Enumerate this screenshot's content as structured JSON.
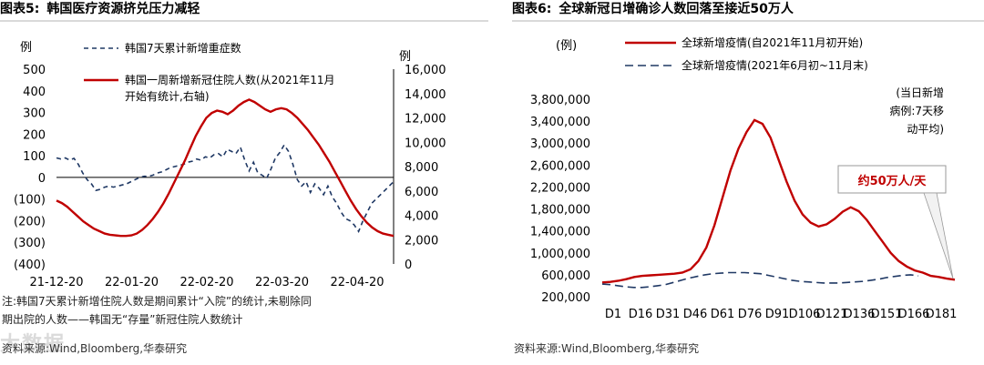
{
  "left": {
    "fig_label": "图表5:",
    "fig_title": "韩国医疗资源挤兑压力减轻",
    "note_line1": "注:韩国7天累计新增住院人数是期间累计“入院”的统计,未剔除同",
    "note_line2": "期出院的人数——韩国无“存量”新冠住院人数统计",
    "source": "资料来源:Wind,Bloomberg,华泰研究",
    "watermark": "大数据"
  },
  "right": {
    "fig_label": "图表6:",
    "fig_title": "全球新冠日增确诊人数回落至接近50万人",
    "source": "资料来源:Wind,Bloomberg,华泰研究",
    "annot_lines": [
      "(当日新增",
      "病例:7天移",
      "动平均)"
    ],
    "callout": "约50万人/天"
  },
  "chart_data": [
    {
      "type": "line",
      "x_tick_labels": [
        "21-12-20",
        "22-01-20",
        "22-02-20",
        "22-03-20",
        "22-04-20"
      ],
      "y_left_label": "例",
      "y_right_label": "例",
      "y_left_ticks": [
        "500",
        "400",
        "300",
        "200",
        "100",
        "0",
        "(100)",
        "(200)",
        "(300)",
        "(400)"
      ],
      "y_left_lim": [
        -400,
        500
      ],
      "y_right_ticks": [
        "16,000",
        "14,000",
        "12,000",
        "10,000",
        "8,000",
        "6,000",
        "4,000",
        "2,000",
        "0"
      ],
      "y_right_lim": [
        0,
        16000
      ],
      "legend_position": "top-left",
      "series": [
        {
          "name": "韩国7天累计新增重症数",
          "axis": "left",
          "style": "dashed",
          "color": "#1f3864",
          "values": [
            90,
            85,
            90,
            80,
            88,
            60,
            20,
            -10,
            -30,
            -60,
            -55,
            -45,
            -40,
            -45,
            -40,
            -35,
            -30,
            -20,
            -10,
            0,
            5,
            5,
            10,
            20,
            25,
            35,
            45,
            50,
            55,
            60,
            70,
            75,
            85,
            80,
            95,
            90,
            105,
            110,
            95,
            130,
            120,
            110,
            140,
            80,
            30,
            70,
            20,
            10,
            -5,
            40,
            90,
            115,
            150,
            120,
            60,
            -10,
            -40,
            -20,
            -70,
            -30,
            -50,
            -80,
            -40,
            -90,
            -120,
            -160,
            -190,
            -200,
            -220,
            -250,
            -200,
            -160,
            -120,
            -100,
            -80,
            -60,
            -40,
            -20
          ]
        },
        {
          "name": "韩国一周新增新冠住院人数(从2021年11月开始有统计,右轴)",
          "axis": "right",
          "style": "solid",
          "color": "#c00000",
          "values": [
            5200,
            5000,
            4700,
            4300,
            3900,
            3500,
            3200,
            2900,
            2700,
            2500,
            2400,
            2350,
            2300,
            2300,
            2350,
            2500,
            2800,
            3200,
            3700,
            4300,
            5000,
            5800,
            6700,
            7600,
            8500,
            9500,
            10500,
            11300,
            12000,
            12400,
            12600,
            12500,
            12300,
            12600,
            13000,
            13300,
            13500,
            13300,
            13000,
            12700,
            12500,
            12700,
            12800,
            12700,
            12400,
            12000,
            11500,
            11000,
            10400,
            9800,
            9100,
            8400,
            7600,
            6800,
            6000,
            5200,
            4500,
            3900,
            3400,
            3000,
            2700,
            2500,
            2400,
            2300
          ]
        }
      ]
    },
    {
      "type": "line",
      "y_label": "(例)",
      "x_tick_labels": [
        "D1",
        "D16",
        "D31",
        "D46",
        "D61",
        "D76",
        "D91",
        "D106",
        "D121",
        "D136",
        "D151",
        "D166",
        "D181"
      ],
      "y_ticks": [
        "3,800,000",
        "3,400,000",
        "3,000,000",
        "2,600,000",
        "2,200,000",
        "1,800,000",
        "1,400,000",
        "1,000,000",
        "600,000",
        "200,000"
      ],
      "ylim": [
        200000,
        3800000
      ],
      "legend_position": "top-left",
      "series": [
        {
          "name": "全球新增疫情(自2021年11月初开始)",
          "style": "solid",
          "color": "#c00000",
          "values": [
            460000,
            470000,
            490000,
            520000,
            560000,
            580000,
            590000,
            600000,
            610000,
            620000,
            640000,
            700000,
            850000,
            1100000,
            1500000,
            2000000,
            2500000,
            2900000,
            3200000,
            3420000,
            3350000,
            3100000,
            2700000,
            2300000,
            1950000,
            1700000,
            1550000,
            1480000,
            1520000,
            1620000,
            1750000,
            1830000,
            1760000,
            1600000,
            1400000,
            1200000,
            1000000,
            850000,
            750000,
            680000,
            640000,
            580000,
            560000,
            530000,
            510000
          ]
        },
        {
          "name": "全球新增疫情(2021年6月初~11月末)",
          "style": "dashed",
          "color": "#1f3864",
          "values": [
            430000,
            420000,
            400000,
            380000,
            370000,
            370000,
            380000,
            400000,
            420000,
            460000,
            500000,
            540000,
            570000,
            600000,
            620000,
            630000,
            640000,
            640000,
            640000,
            630000,
            620000,
            590000,
            560000,
            530000,
            500000,
            480000,
            470000,
            460000,
            450000,
            450000,
            450000,
            460000,
            470000,
            480000,
            500000,
            520000,
            550000,
            570000,
            590000,
            600000,
            580000
          ]
        }
      ]
    }
  ]
}
